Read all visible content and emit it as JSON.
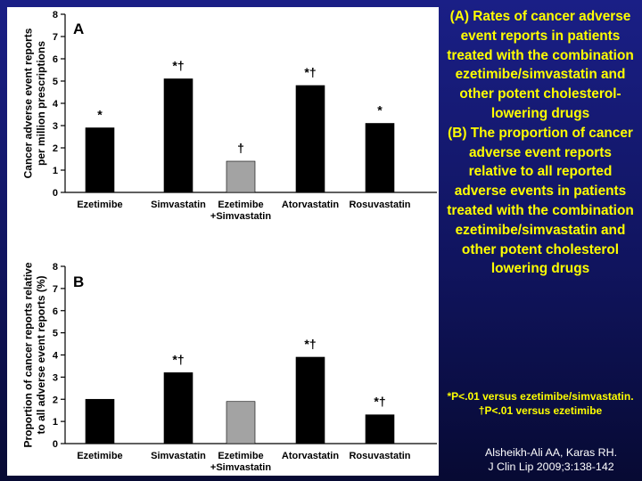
{
  "slide": {
    "caption_a": "(A) Rates of cancer adverse event reports in patients treated with the combination ezetimibe/simvastatin and other potent cholesterol-lowering drugs",
    "caption_b": "(B) The proportion of cancer adverse event reports relative to all reported adverse events in patients treated with the combination ezetimibe/simvastatin and other potent cholesterol lowering drugs",
    "footnote_1": "*P<.01 versus ezetimibe/simvastatin.",
    "footnote_2": "†P<.01 versus ezetimibe",
    "citation_1": "Alsheikh-Ali AA, Karas RH.",
    "citation_2": "J Clin Lip 2009;3:138-142"
  },
  "colors": {
    "bar_default": "#000000",
    "bar_highlight": "#a3a3a3",
    "panel_background": "#ffffff",
    "caption_text": "#ffff00",
    "citation_text": "#ffffff"
  },
  "chart_data": [
    {
      "type": "bar",
      "panel_label": "A",
      "ylabel": "Cancer adverse event reports per million prescriptions",
      "xlabel": "",
      "ylim": [
        0,
        8
      ],
      "yticks": [
        0,
        1,
        2,
        3,
        4,
        5,
        6,
        7,
        8
      ],
      "grid": false,
      "categories": [
        "Ezetimibe",
        "Simvastatin",
        "Ezetimibe +Simvastatin",
        "Atorvastatin",
        "Rosuvastatin"
      ],
      "values": [
        2.9,
        5.1,
        1.4,
        4.8,
        3.1
      ],
      "annotations": [
        "*",
        "*†",
        "†",
        "*†",
        "*"
      ],
      "highlight": [
        false,
        false,
        true,
        false,
        false
      ]
    },
    {
      "type": "bar",
      "panel_label": "B",
      "ylabel": "Proportion of cancer reports relative to all adverse event reports (%)",
      "xlabel": "",
      "ylim": [
        0,
        8
      ],
      "yticks": [
        0,
        1,
        2,
        3,
        4,
        5,
        6,
        7,
        8
      ],
      "grid": false,
      "categories": [
        "Ezetimibe",
        "Simvastatin",
        "Ezetimibe +Simvastatin",
        "Atorvastatin",
        "Rosuvastatin"
      ],
      "values": [
        2.0,
        3.2,
        1.9,
        3.9,
        1.3
      ],
      "annotations": [
        "",
        "*†",
        "",
        "*†",
        "*†"
      ],
      "highlight": [
        false,
        false,
        true,
        false,
        false
      ]
    }
  ]
}
